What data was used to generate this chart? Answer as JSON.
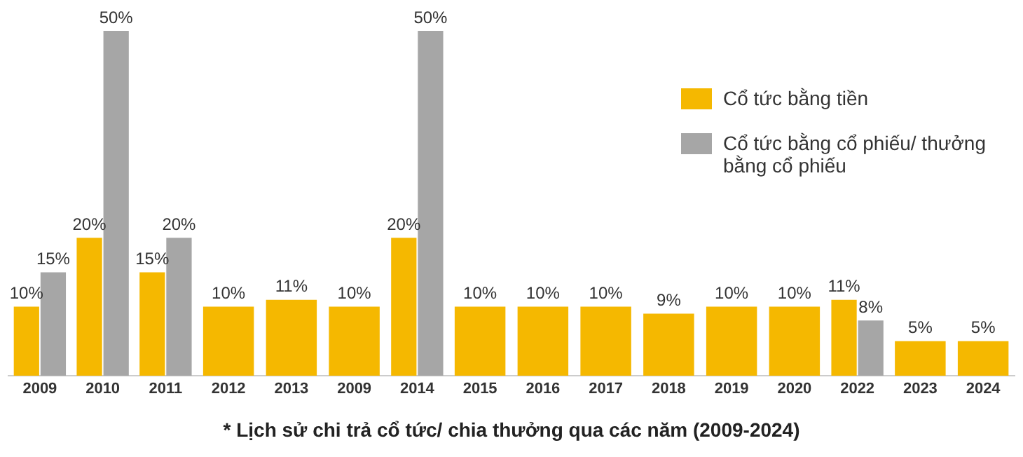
{
  "chart_data": {
    "type": "bar",
    "title": "* Lịch sử chi trả cổ tức/ chia thưởng qua các năm (2009-2024)",
    "categories": [
      "2009",
      "2010",
      "2011",
      "2012",
      "2013",
      "2009",
      "2014",
      "2015",
      "2016",
      "2017",
      "2018",
      "2019",
      "2020",
      "2022",
      "2023",
      "2024"
    ],
    "series": [
      {
        "name": "Cổ tức bằng tiền",
        "color": "#f5b800",
        "values": [
          10,
          20,
          15,
          10,
          11,
          10,
          20,
          10,
          10,
          10,
          9,
          10,
          10,
          11,
          5,
          5
        ],
        "value_labels": [
          "10%",
          "20%",
          "15%",
          "10%",
          "11%",
          "10%",
          "20%",
          "10%",
          "10%",
          "10%",
          "9%",
          "10%",
          "10%",
          "11%",
          "5%",
          "5%"
        ]
      },
      {
        "name": "Cổ tức bằng cổ phiếu/ thưởng bằng cổ phiếu",
        "color": "#a6a6a6",
        "values": [
          15,
          50,
          20,
          null,
          null,
          null,
          50,
          null,
          null,
          null,
          null,
          null,
          null,
          8,
          null,
          null
        ],
        "value_labels": [
          "15%",
          "50%",
          "20%",
          null,
          null,
          null,
          "50%",
          null,
          null,
          null,
          null,
          null,
          null,
          "8%",
          null,
          null
        ]
      }
    ],
    "grid": false,
    "legend": "top right",
    "tick_labels": "x"
  }
}
